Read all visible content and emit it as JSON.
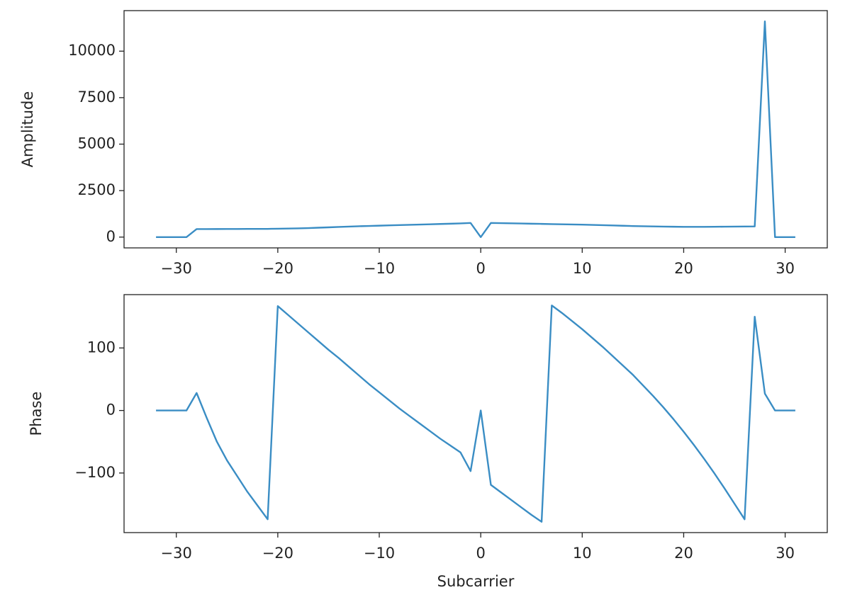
{
  "chart_data": [
    {
      "type": "line",
      "ylabel": "Amplitude",
      "x": [
        -32,
        -31,
        -30,
        -29,
        -28,
        -27,
        -26,
        -25,
        -24,
        -23,
        -22,
        -21,
        -20,
        -19,
        -18,
        -17,
        -16,
        -15,
        -14,
        -13,
        -12,
        -11,
        -10,
        -9,
        -8,
        -7,
        -6,
        -5,
        -4,
        -3,
        -2,
        -1,
        0,
        1,
        2,
        3,
        4,
        5,
        6,
        7,
        8,
        9,
        10,
        11,
        12,
        13,
        14,
        15,
        16,
        17,
        18,
        19,
        20,
        21,
        22,
        23,
        24,
        25,
        26,
        27,
        28,
        29,
        30,
        31
      ],
      "series": [
        {
          "color": "#3a8dc4",
          "values": [
            0,
            0,
            0,
            0,
            430,
            432,
            434,
            436,
            438,
            440,
            441,
            443,
            450,
            460,
            470,
            485,
            505,
            525,
            545,
            565,
            585,
            600,
            615,
            630,
            645,
            660,
            675,
            690,
            705,
            720,
            735,
            760,
            0,
            760,
            750,
            740,
            730,
            720,
            710,
            700,
            690,
            680,
            670,
            655,
            640,
            625,
            610,
            595,
            585,
            575,
            565,
            558,
            552,
            550,
            552,
            556,
            560,
            565,
            570,
            575,
            11600,
            0,
            0,
            0
          ]
        }
      ],
      "xlim": [
        -35.15,
        34.15
      ],
      "xticks": [
        {
          "value": -30,
          "label": "−30"
        },
        {
          "value": -20,
          "label": "−20"
        },
        {
          "value": -10,
          "label": "−10"
        },
        0,
        10,
        20,
        30
      ],
      "ylim": [
        -580,
        12180
      ],
      "yticks": [
        0,
        2500,
        5000,
        7500,
        10000
      ],
      "grid": false
    },
    {
      "type": "line",
      "ylabel": "Phase",
      "xlabel": "Subcarrier",
      "x": [
        -32,
        -31,
        -30,
        -29,
        -28,
        -27,
        -26,
        -25,
        -24,
        -23,
        -22,
        -21,
        -20,
        -19,
        -18,
        -17,
        -16,
        -15,
        -14,
        -13,
        -12,
        -11,
        -10,
        -9,
        -8,
        -7,
        -6,
        -5,
        -4,
        -3,
        -2,
        -1,
        0,
        1,
        2,
        3,
        4,
        5,
        6,
        7,
        8,
        9,
        10,
        11,
        12,
        13,
        14,
        15,
        16,
        17,
        18,
        19,
        20,
        21,
        22,
        23,
        24,
        25,
        26,
        27,
        28,
        29,
        30,
        31
      ],
      "series": [
        {
          "color": "#3a8dc4",
          "values": [
            0,
            0,
            0,
            0,
            28,
            -12,
            -50,
            -80,
            -105,
            -130,
            -152,
            -174,
            167,
            153,
            139,
            125,
            111,
            97,
            84,
            70,
            56,
            42,
            29,
            16,
            3,
            -9,
            -21,
            -33,
            -45,
            -56,
            -67,
            -97,
            0,
            -119,
            -131,
            -143,
            -155,
            -167,
            -178,
            168,
            156,
            143,
            130,
            116,
            102,
            87,
            72,
            57,
            40,
            23,
            5,
            -14,
            -34,
            -55,
            -77,
            -100,
            -124,
            -149,
            -174,
            150,
            27,
            0,
            0,
            0
          ]
        }
      ],
      "xlim": [
        -35.15,
        34.15
      ],
      "xticks": [
        {
          "value": -30,
          "label": "−30"
        },
        {
          "value": -20,
          "label": "−20"
        },
        {
          "value": -10,
          "label": "−10"
        },
        0,
        10,
        20,
        30
      ],
      "ylim": [
        -195.3,
        185.3
      ],
      "yticks": [
        {
          "value": -100,
          "label": "−100"
        },
        0,
        100
      ],
      "grid": false
    }
  ]
}
